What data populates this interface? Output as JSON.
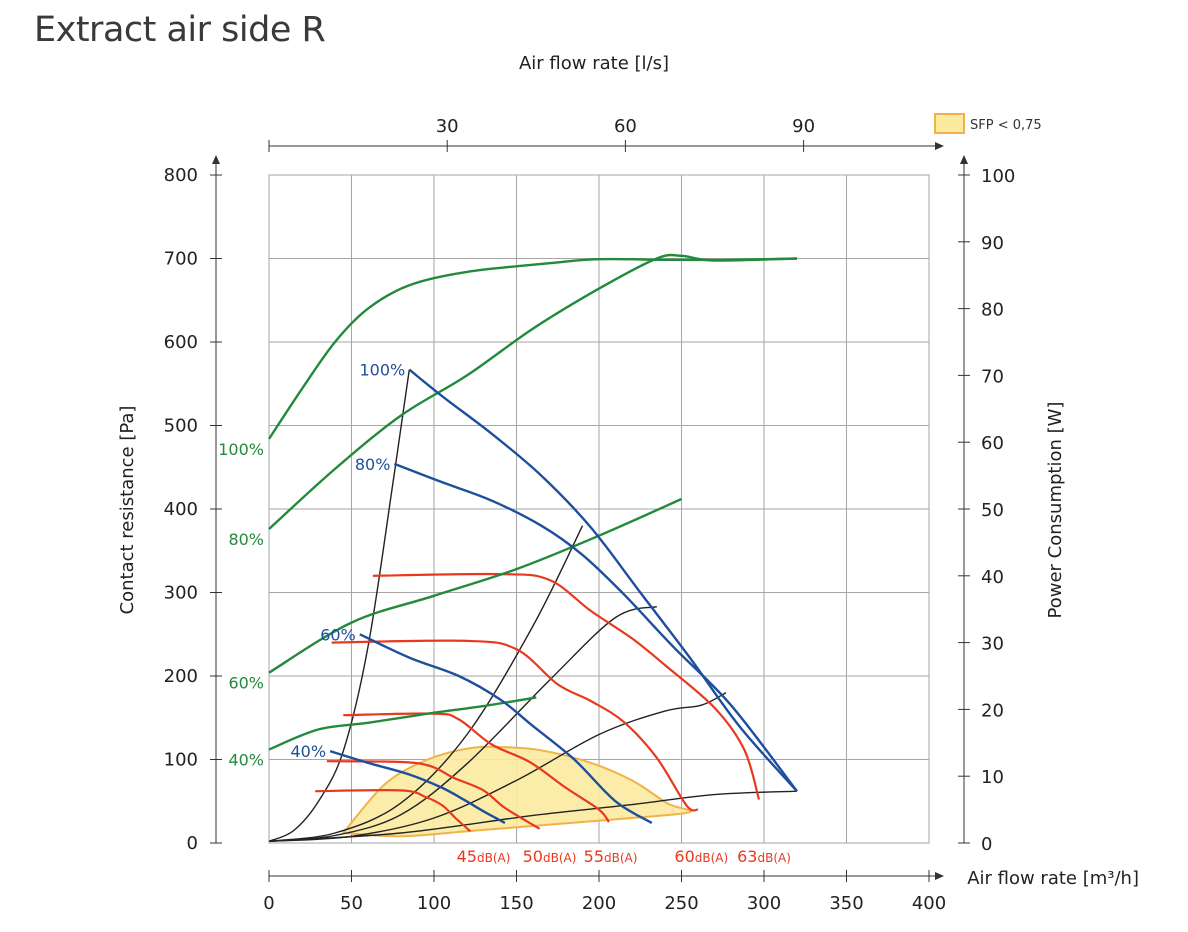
{
  "title": "Extract air side R",
  "chart_data": {
    "type": "line",
    "title": "Extract air side R",
    "top_axis": {
      "label": "Air flow rate [l/s]",
      "ticks": [
        30,
        60,
        90
      ]
    },
    "bottom_axis": {
      "label": "Air flow rate [m³/h]",
      "range": [
        0,
        400
      ],
      "ticks": [
        0,
        50,
        100,
        150,
        200,
        250,
        300,
        350,
        400
      ]
    },
    "left_axis": {
      "label": "Contact resistance [Pa]",
      "range": [
        0,
        800
      ],
      "ticks": [
        0,
        100,
        200,
        300,
        400,
        500,
        600,
        700,
        800
      ]
    },
    "right_axis": {
      "label": "Power Consumption [W]",
      "range": [
        0,
        100
      ],
      "ticks": [
        0,
        10,
        20,
        30,
        40,
        50,
        60,
        70,
        80,
        90,
        100
      ]
    },
    "grid": true,
    "legend": {
      "position": "top-right",
      "label": "SFP < 0,75",
      "color": "#fbeaa0",
      "border": "#f2b24a"
    },
    "colors": {
      "fan_curve": "#1e4f9c",
      "power_curve": "#238a3c",
      "sound_curve": "#e8391f",
      "system_curve": "#222222",
      "sfp_fill": "#fbeaa0",
      "sfp_stroke": "#f2b24a"
    },
    "fan_curves": [
      {
        "name": "100%",
        "points": [
          [
            85,
            567
          ],
          [
            105,
            535
          ],
          [
            135,
            490
          ],
          [
            165,
            440
          ],
          [
            195,
            378
          ],
          [
            225,
            300
          ],
          [
            255,
            222
          ],
          [
            285,
            140
          ],
          [
            320,
            62
          ]
        ]
      },
      {
        "name": "80%",
        "points": [
          [
            76,
            454
          ],
          [
            105,
            432
          ],
          [
            135,
            410
          ],
          [
            165,
            380
          ],
          [
            190,
            345
          ],
          [
            215,
            298
          ],
          [
            245,
            235
          ],
          [
            280,
            165
          ],
          [
            320,
            62
          ]
        ]
      },
      {
        "name": "60%",
        "points": [
          [
            55,
            250
          ],
          [
            85,
            222
          ],
          [
            115,
            200
          ],
          [
            140,
            172
          ],
          [
            160,
            140
          ],
          [
            185,
            100
          ],
          [
            210,
            50
          ],
          [
            232,
            24
          ]
        ]
      },
      {
        "name": "40%",
        "points": [
          [
            37,
            110
          ],
          [
            60,
            96
          ],
          [
            85,
            82
          ],
          [
            105,
            66
          ],
          [
            118,
            52
          ],
          [
            130,
            38
          ],
          [
            143,
            24
          ]
        ]
      }
    ],
    "power_curves": [
      {
        "name": "100%",
        "points": [
          [
            0,
            60.5
          ],
          [
            20,
            68
          ],
          [
            40,
            75
          ],
          [
            60,
            80
          ],
          [
            85,
            83.5
          ],
          [
            120,
            85.5
          ],
          [
            170,
            86.8
          ],
          [
            200,
            87.4
          ],
          [
            240,
            87.3
          ],
          [
            280,
            87.3
          ],
          [
            320,
            87.5
          ]
        ]
      },
      {
        "name": "",
        "points": [
          [
            0,
            47
          ],
          [
            40,
            56
          ],
          [
            80,
            64
          ],
          [
            120,
            70
          ],
          [
            160,
            77
          ],
          [
            200,
            83
          ],
          [
            235,
            87.5
          ],
          [
            250,
            87.9
          ],
          [
            270,
            87.2
          ],
          [
            320,
            87.5
          ]
        ]
      },
      {
        "name": "80%",
        "points": [
          [
            0,
            47
          ],
          [
            40,
            56
          ],
          [
            80,
            64
          ],
          [
            120,
            70
          ],
          [
            160,
            77
          ],
          [
            200,
            83
          ],
          [
            235,
            87.5
          ],
          [
            250,
            87.9
          ],
          [
            270,
            87.2
          ],
          [
            320,
            87.5
          ]
        ]
      },
      {
        "name": "60%",
        "points": [
          [
            0,
            25.5
          ],
          [
            50,
            33
          ],
          [
            100,
            37
          ],
          [
            150,
            41
          ],
          [
            200,
            46
          ],
          [
            250,
            51.5
          ]
        ]
      },
      {
        "name": "40%",
        "points": [
          [
            0,
            14
          ],
          [
            30,
            17
          ],
          [
            60,
            18
          ],
          [
            100,
            19.5
          ],
          [
            130,
            20.5
          ],
          [
            162,
            21.8
          ]
        ]
      }
    ],
    "sound_curves": [
      {
        "name": "45dB(A)",
        "points": [
          [
            28,
            62
          ],
          [
            80,
            63
          ],
          [
            95,
            55
          ],
          [
            105,
            45
          ],
          [
            113,
            30
          ],
          [
            122,
            14
          ]
        ]
      },
      {
        "name": "50dB(A)",
        "points": [
          [
            35,
            98
          ],
          [
            80,
            97
          ],
          [
            98,
            92
          ],
          [
            112,
            78
          ],
          [
            130,
            63
          ],
          [
            143,
            42
          ],
          [
            164,
            17
          ]
        ]
      },
      {
        "name": "55dB(A)",
        "points": [
          [
            45,
            153
          ],
          [
            100,
            155
          ],
          [
            115,
            148
          ],
          [
            135,
            118
          ],
          [
            158,
            97
          ],
          [
            180,
            66
          ],
          [
            200,
            40
          ],
          [
            206,
            25
          ]
        ]
      },
      {
        "name": "60dB(A)",
        "points": [
          [
            38,
            240
          ],
          [
            120,
            242
          ],
          [
            150,
            232
          ],
          [
            175,
            190
          ],
          [
            195,
            170
          ],
          [
            215,
            145
          ],
          [
            235,
            102
          ],
          [
            253,
            45
          ],
          [
            260,
            40
          ]
        ]
      },
      {
        "name": "63dB(A)",
        "points": [
          [
            63,
            320
          ],
          [
            140,
            322
          ],
          [
            170,
            315
          ],
          [
            195,
            278
          ],
          [
            220,
            245
          ],
          [
            240,
            213
          ],
          [
            270,
            162
          ],
          [
            288,
            112
          ],
          [
            297,
            52
          ]
        ]
      }
    ],
    "system_curves": [
      {
        "points": [
          [
            0,
            2
          ],
          [
            15,
            15
          ],
          [
            30,
            50
          ],
          [
            45,
            110
          ],
          [
            60,
            235
          ],
          [
            75,
            430
          ],
          [
            85,
            567
          ]
        ]
      },
      {
        "points": [
          [
            0,
            2
          ],
          [
            40,
            12
          ],
          [
            80,
            48
          ],
          [
            120,
            130
          ],
          [
            160,
            260
          ],
          [
            190,
            380
          ]
        ]
      },
      {
        "points": [
          [
            0,
            2
          ],
          [
            40,
            9
          ],
          [
            80,
            34
          ],
          [
            120,
            95
          ],
          [
            170,
            195
          ],
          [
            210,
            270
          ],
          [
            235,
            283
          ]
        ]
      },
      {
        "points": [
          [
            0,
            2
          ],
          [
            50,
            8
          ],
          [
            100,
            30
          ],
          [
            150,
            75
          ],
          [
            200,
            130
          ],
          [
            240,
            158
          ],
          [
            262,
            165
          ],
          [
            277,
            180
          ]
        ]
      },
      {
        "points": [
          [
            0,
            2
          ],
          [
            80,
            12
          ],
          [
            160,
            33
          ],
          [
            220,
            46
          ],
          [
            270,
            58
          ],
          [
            320,
            62
          ]
        ]
      }
    ],
    "sfp_area": {
      "name": "SFP < 0,75",
      "points": [
        [
          45,
          12
        ],
        [
          70,
          70
        ],
        [
          95,
          99
        ],
        [
          120,
          113
        ],
        [
          140,
          115
        ],
        [
          165,
          111
        ],
        [
          195,
          96
        ],
        [
          220,
          75
        ],
        [
          242,
          47
        ],
        [
          255,
          37
        ],
        [
          220,
          30
        ],
        [
          170,
          22
        ],
        [
          120,
          14
        ],
        [
          80,
          8
        ],
        [
          45,
          12
        ]
      ]
    },
    "labels": {
      "fan": [
        {
          "text": "100%",
          "at": [
            85,
            567
          ]
        },
        {
          "text": "80%",
          "at": [
            76,
            454
          ]
        },
        {
          "text": "60%",
          "at": [
            55,
            250
          ]
        },
        {
          "text": "40%",
          "at": [
            37,
            110
          ]
        }
      ],
      "power": [
        {
          "text": "100%",
          "at": [
            0,
            60.5
          ]
        },
        {
          "text": "80%",
          "at": [
            0,
            47
          ]
        },
        {
          "text": "60%",
          "at": [
            0,
            25.5
          ]
        },
        {
          "text": "40%",
          "at": [
            0,
            14
          ]
        }
      ],
      "sound": [
        {
          "text": "45dB(A)",
          "x": 130
        },
        {
          "text": "50dB(A)",
          "x": 170
        },
        {
          "text": "55dB(A)",
          "x": 207
        },
        {
          "text": "60dB(A)",
          "x": 262
        },
        {
          "text": "63dB(A)",
          "x": 300
        }
      ]
    }
  }
}
